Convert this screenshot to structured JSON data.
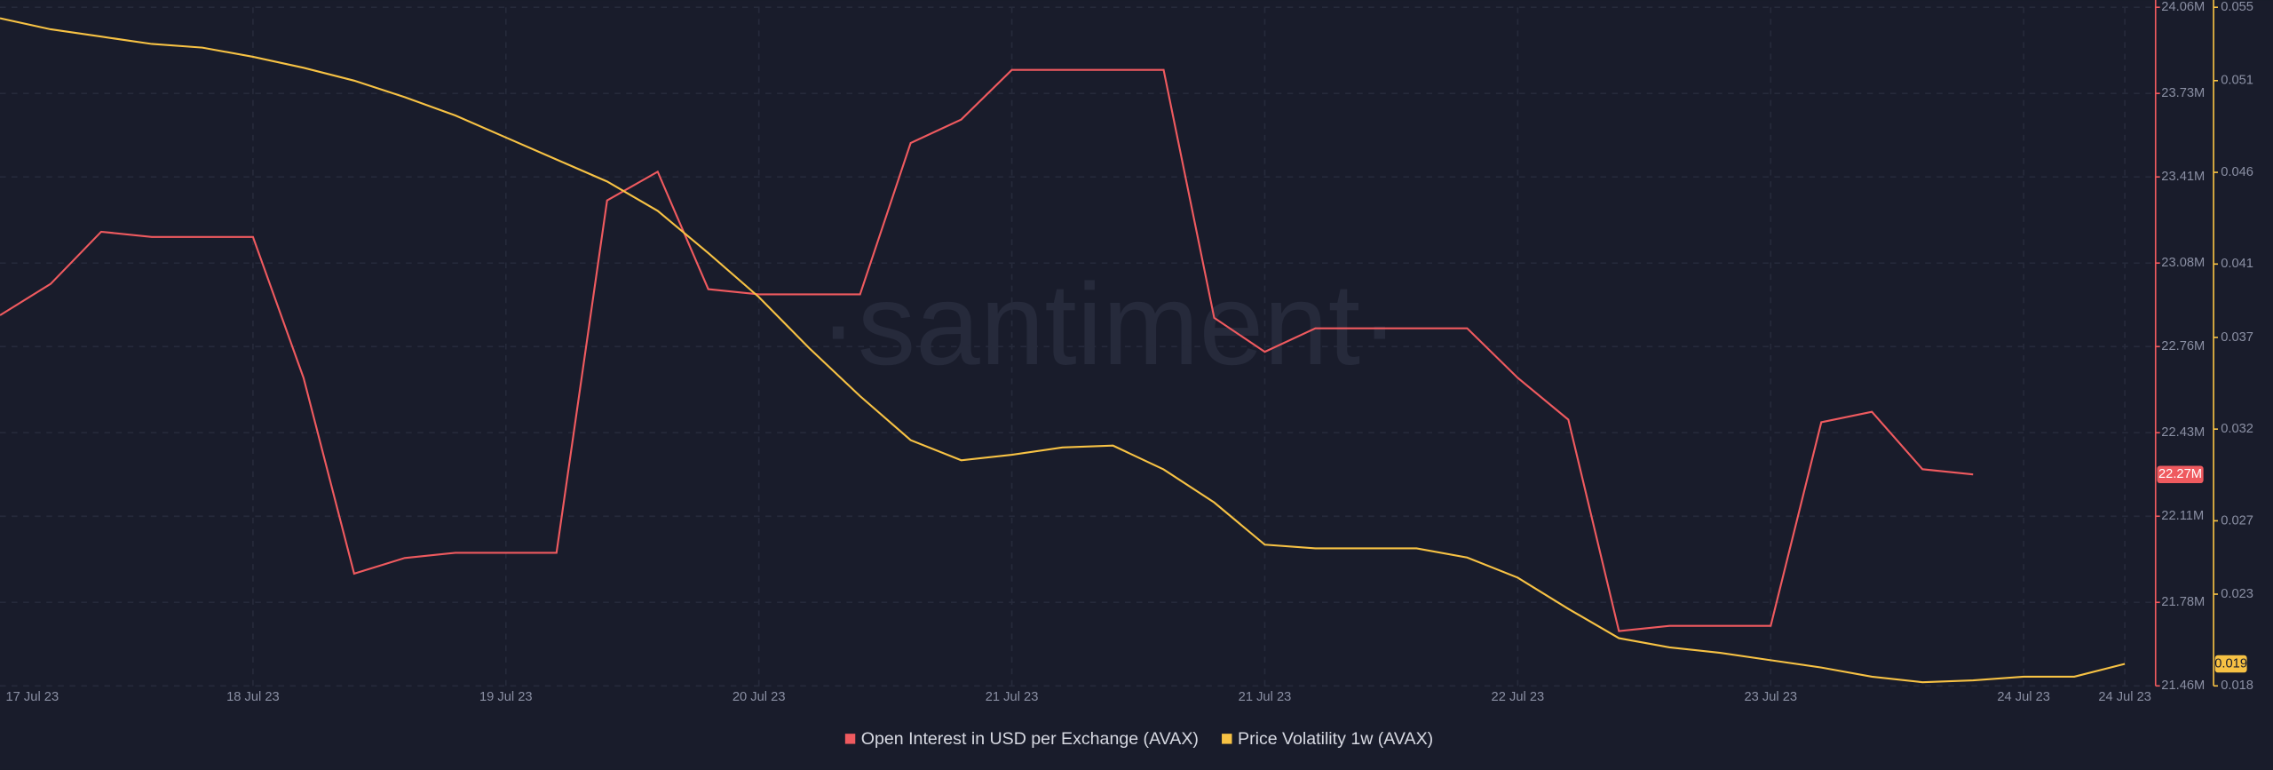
{
  "chart_data": {
    "type": "line",
    "watermark": "·santiment·",
    "categories": [
      "17 Jul 23",
      null,
      null,
      null,
      null,
      "18 Jul 23",
      null,
      null,
      null,
      null,
      "19 Jul 23",
      null,
      null,
      null,
      null,
      "20 Jul 23",
      null,
      null,
      null,
      null,
      "21 Jul 23",
      null,
      null,
      null,
      null,
      "21 Jul 23",
      null,
      null,
      null,
      null,
      "22 Jul 23",
      null,
      null,
      null,
      null,
      "23 Jul 23",
      null,
      null,
      null,
      null,
      "24 Jul 23",
      null,
      "24 Jul 23"
    ],
    "series": [
      {
        "name": "Open Interest in USD per Exchange (AVAX)",
        "color": "#ef5a5f",
        "axis": "y",
        "marker_label": "22.27M",
        "values": [
          22.88,
          23.0,
          23.2,
          23.18,
          23.18,
          23.18,
          22.64,
          21.89,
          21.95,
          21.97,
          21.97,
          21.97,
          23.32,
          23.43,
          22.98,
          22.96,
          22.96,
          22.96,
          23.54,
          23.63,
          23.82,
          23.82,
          23.82,
          23.82,
          22.87,
          22.74,
          22.83,
          22.83,
          22.83,
          22.83,
          22.64,
          22.48,
          21.67,
          21.69,
          21.69,
          21.69,
          22.47,
          22.51,
          22.29,
          22.27,
          null,
          null,
          null
        ]
      },
      {
        "name": "Price Volatility 1w (AVAX)",
        "color": "#f7c244",
        "axis": "y2",
        "marker_label": "0.019",
        "values": [
          0.0544,
          0.0538,
          0.0534,
          0.053,
          0.0528,
          0.0523,
          0.0517,
          0.051,
          0.0501,
          0.0491,
          0.0479,
          0.0467,
          0.0455,
          0.0439,
          0.0416,
          0.0392,
          0.0364,
          0.0338,
          0.0314,
          0.0303,
          0.0306,
          0.031,
          0.0311,
          0.0298,
          0.028,
          0.0257,
          0.0255,
          0.0255,
          0.0255,
          0.025,
          0.0239,
          0.0222,
          0.0206,
          0.0201,
          0.0198,
          0.0194,
          0.019,
          0.0185,
          0.0182,
          0.0183,
          0.0185,
          0.0185,
          0.0192
        ]
      }
    ],
    "ylim": [
      21.46,
      24.06
    ],
    "yticks": [
      {
        "value": 24.06,
        "label": "24.06M"
      },
      {
        "value": 23.73,
        "label": "23.73M"
      },
      {
        "value": 23.41,
        "label": "23.41M"
      },
      {
        "value": 23.08,
        "label": "23.08M"
      },
      {
        "value": 22.76,
        "label": "22.76M"
      },
      {
        "value": 22.43,
        "label": "22.43M"
      },
      {
        "value": 22.11,
        "label": "22.11M"
      },
      {
        "value": 21.78,
        "label": "21.78M"
      },
      {
        "value": 21.46,
        "label": "21.46M"
      }
    ],
    "y2lim": [
      0.018,
      0.055
    ],
    "y2ticks": [
      0.055,
      0.051,
      0.046,
      0.041,
      0.037,
      0.032,
      0.027,
      0.023,
      0.018
    ],
    "grid": true
  }
}
